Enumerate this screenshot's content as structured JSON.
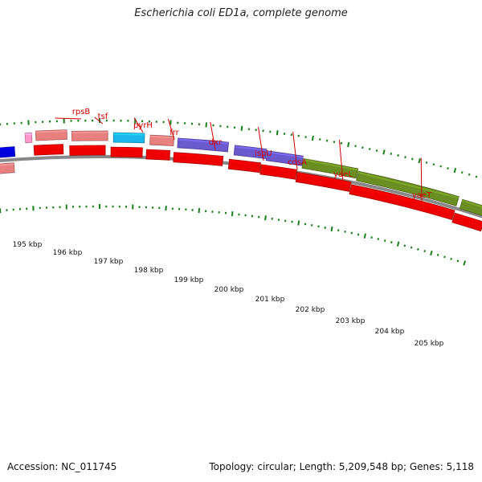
{
  "title": "Escherichia coli ED1a, complete genome",
  "footer": {
    "accession": "Accession: NC_011745",
    "topology": "Topology: circular; Length: 5,209,548 bp; Genes: 5,118"
  },
  "colors": {
    "gene_label": "#cc0000",
    "cds_forward": "#e88080",
    "cds_reverse": "#ee0000",
    "trna": "#1ab8ea",
    "feature_purple": "#6a5acd",
    "feature_green": "#6b8e23",
    "feature_blue": "#0000dd",
    "feature_pink": "#ff99cc",
    "backbone": "#888888",
    "tick": "#1a7f1a"
  },
  "gene_labels": [
    "rpsB",
    "tsf",
    "pyrH",
    "frr",
    "dxr",
    "ispU",
    "cdsA",
    "yaeL",
    "yaeT"
  ],
  "kbp_labels": [
    "195 kbp",
    "196 kbp",
    "197 kbp",
    "198 kbp",
    "199 kbp",
    "200 kbp",
    "201 kbp",
    "202 kbp",
    "203 kbp",
    "204 kbp",
    "205 kbp"
  ]
}
